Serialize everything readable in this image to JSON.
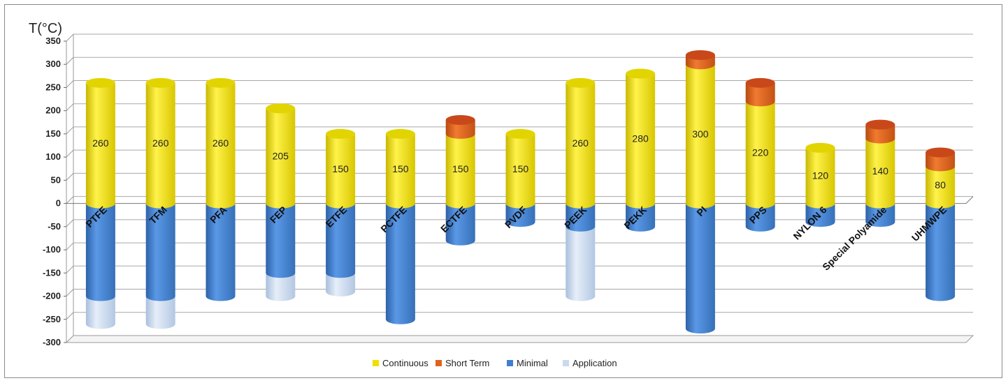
{
  "chart_data": {
    "type": "bar",
    "title": "",
    "ylabel": "T(°C)",
    "xlabel": "",
    "ylim": [
      -300,
      350
    ],
    "yticks": [
      350,
      300,
      250,
      200,
      150,
      100,
      50,
      0,
      -50,
      -100,
      -150,
      -200,
      -250,
      -300
    ],
    "grid": true,
    "legend_placement": "bottom",
    "categories": [
      "PTFE",
      "TFM",
      "PFA",
      "FEP",
      "ETFE",
      "PCTFE",
      "ECTFE",
      "PVDF",
      "PEEK",
      "PEKK",
      "PI",
      "PPS",
      "NYLON 6",
      "Special Polyamide",
      "UHMWPE"
    ],
    "series": [
      {
        "name": "Continuous",
        "color": "#f0e000",
        "values": [
          260,
          260,
          260,
          205,
          150,
          150,
          150,
          150,
          260,
          280,
          300,
          220,
          120,
          140,
          80
        ]
      },
      {
        "name": "Short Term",
        "color": "#e0631c",
        "values": [
          null,
          null,
          null,
          null,
          null,
          null,
          180,
          null,
          null,
          null,
          320,
          260,
          null,
          170,
          110
        ]
      },
      {
        "name": "Minimal",
        "color": "#3f7fd0",
        "values": [
          -200,
          -200,
          -200,
          -150,
          -150,
          -250,
          -80,
          -40,
          -50,
          -50,
          -270,
          -50,
          -40,
          -40,
          -200
        ]
      },
      {
        "name": "Application",
        "color": "#c9d9ee",
        "values": [
          -260,
          -260,
          null,
          -200,
          -190,
          null,
          null,
          null,
          -200,
          null,
          null,
          null,
          null,
          null,
          null
        ]
      }
    ],
    "data_labels": [
      "260",
      "260",
      "260",
      "205",
      "150",
      "150",
      "150",
      "150",
      "260",
      "280",
      "300",
      "220",
      "120",
      "140",
      "80"
    ]
  }
}
